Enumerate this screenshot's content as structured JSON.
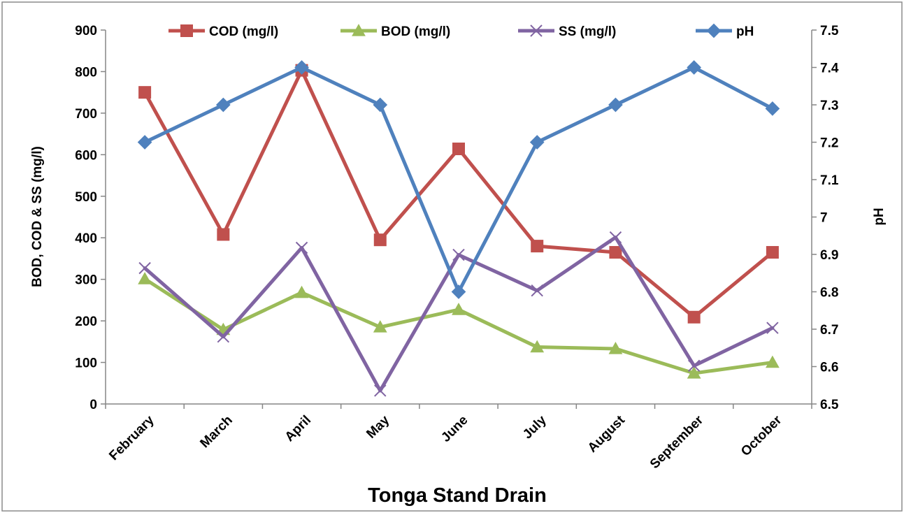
{
  "chart_data": {
    "type": "line",
    "title": "Tonga Stand Drain",
    "xlabel": "",
    "ylabel": "BOD, COD & SS (mg/l)",
    "y2label": "pH",
    "categories": [
      "February",
      "March",
      "April",
      "May",
      "June",
      "July",
      "August",
      "September",
      "October"
    ],
    "ylim": [
      0,
      900
    ],
    "yticks": [
      0,
      100,
      200,
      300,
      400,
      500,
      600,
      700,
      800,
      900
    ],
    "y2lim": [
      6.5,
      7.5
    ],
    "y2ticks": [
      "6.5",
      "6.6",
      "6.7",
      "6.8",
      "6.9",
      "7",
      "7.1",
      "7.2",
      "7.3",
      "7.4",
      "7.5"
    ],
    "grid": false,
    "legend_position": "top",
    "series": [
      {
        "name": "COD (mg/l)",
        "axis": "left",
        "color": "#C0504D",
        "marker": "square",
        "values": [
          750,
          408,
          803,
          395,
          614,
          380,
          365,
          209,
          365
        ]
      },
      {
        "name": "BOD (mg/l)",
        "axis": "left",
        "color": "#9BBB59",
        "marker": "triangle",
        "values": [
          301,
          179,
          268,
          185,
          227,
          137,
          133,
          74,
          100
        ]
      },
      {
        "name": "SS (mg/l)",
        "axis": "left",
        "color": "#8064A2",
        "marker": "x",
        "values": [
          327,
          162,
          376,
          32,
          359,
          273,
          401,
          92,
          183
        ]
      },
      {
        "name": "pH",
        "axis": "right",
        "color": "#4F81BD",
        "marker": "diamond",
        "values": [
          7.2,
          7.3,
          7.4,
          7.3,
          6.8,
          7.2,
          7.3,
          7.4,
          7.29
        ]
      }
    ]
  }
}
